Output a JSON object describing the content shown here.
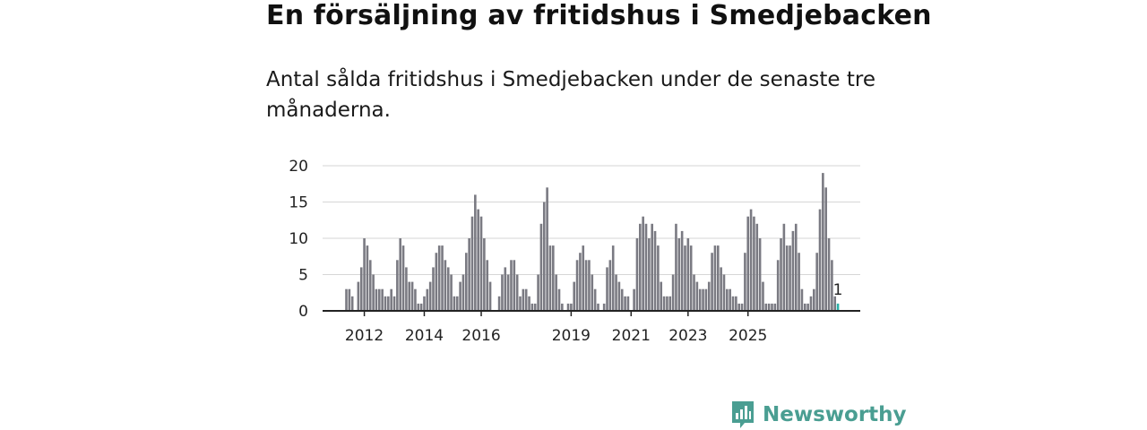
{
  "title": "En försäljning av fritidshus i Smedjebacken",
  "subtitle": "Antal sålda fritidshus i Smedjebacken under de senaste tre månaderna.",
  "brand": "Newsworthy",
  "colors": {
    "bar": "#7a7a82",
    "highlight": "#2bb1a8",
    "grid": "#d6d6d6",
    "axis": "#222222",
    "brand": "#4a9e92"
  },
  "chart_data": {
    "type": "bar",
    "title": "En försäljning av fritidshus i Smedjebacken",
    "xlabel": "",
    "ylabel": "",
    "ylim": [
      0,
      20
    ],
    "yticks": [
      0,
      5,
      10,
      15,
      20
    ],
    "xtick_labels": [
      {
        "label": "2012",
        "index": 6
      },
      {
        "label": "2014",
        "index": 26
      },
      {
        "label": "2016",
        "index": 45
      },
      {
        "label": "2019",
        "index": 75
      },
      {
        "label": "2021",
        "index": 95
      },
      {
        "label": "2023",
        "index": 114
      },
      {
        "label": "2025",
        "index": 134
      }
    ],
    "values": [
      3,
      3,
      2,
      0,
      4,
      6,
      10,
      9,
      7,
      5,
      3,
      3,
      3,
      2,
      2,
      3,
      2,
      7,
      10,
      9,
      6,
      4,
      4,
      3,
      1,
      1,
      2,
      3,
      4,
      6,
      8,
      9,
      9,
      7,
      6,
      5,
      2,
      2,
      4,
      5,
      8,
      10,
      13,
      16,
      14,
      13,
      10,
      7,
      4,
      0,
      0,
      2,
      5,
      6,
      5,
      7,
      7,
      5,
      2,
      3,
      3,
      2,
      1,
      1,
      5,
      12,
      15,
      17,
      9,
      9,
      5,
      3,
      1,
      0,
      1,
      1,
      4,
      7,
      8,
      9,
      7,
      7,
      5,
      3,
      1,
      0,
      1,
      6,
      7,
      9,
      5,
      4,
      3,
      2,
      2,
      0,
      3,
      10,
      12,
      13,
      12,
      10,
      12,
      11,
      9,
      4,
      2,
      2,
      2,
      5,
      12,
      10,
      11,
      9,
      10,
      9,
      5,
      4,
      3,
      3,
      3,
      4,
      8,
      9,
      9,
      6,
      5,
      3,
      3,
      2,
      2,
      1,
      1,
      8,
      13,
      14,
      13,
      12,
      10,
      4,
      1,
      1,
      1,
      1,
      7,
      10,
      12,
      9,
      9,
      11,
      12,
      8,
      3,
      1,
      1,
      2,
      3,
      8,
      14,
      19,
      17,
      10,
      7,
      2,
      1
    ],
    "highlight_index": 164,
    "annotation": "1"
  }
}
